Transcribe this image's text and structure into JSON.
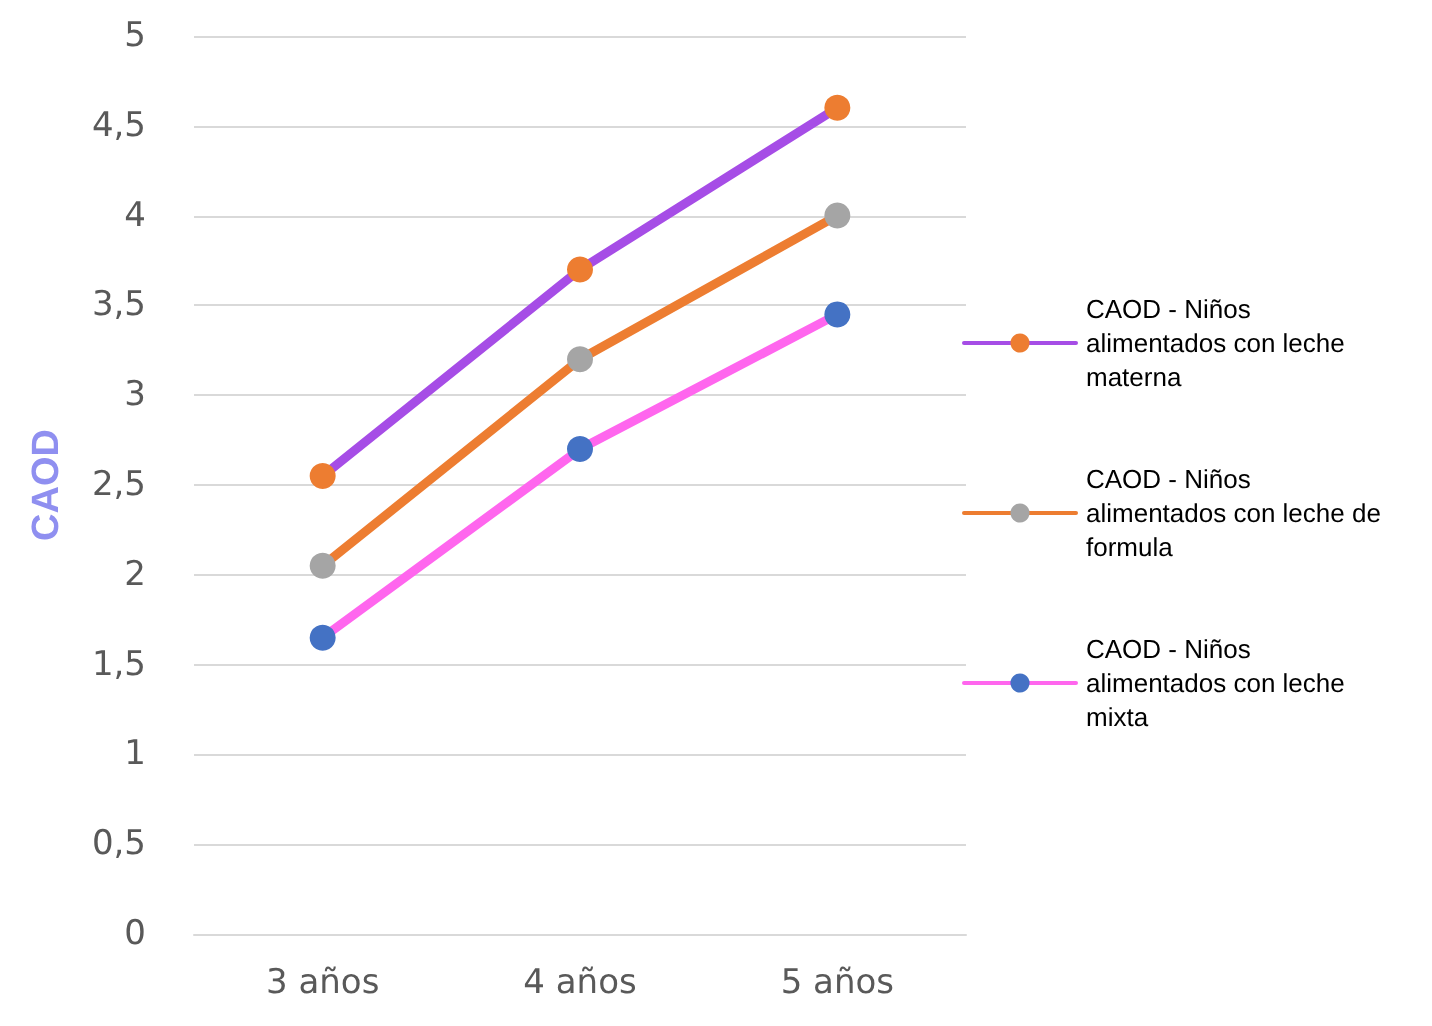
{
  "chart_data": {
    "type": "line",
    "ylabel": "CAOD",
    "categories": [
      "3 años",
      "4 años",
      "5 años"
    ],
    "series": [
      {
        "name": "CAOD - Niños alimentados con leche materna",
        "color": "#a64de6",
        "colors": [
          "#ed7d31",
          "#ed7d31",
          "#ed7d31"
        ],
        "values": [
          2.55,
          3.7,
          4.6
        ]
      },
      {
        "name": "CAOD - Niños alimentados con leche de formula",
        "color": "#ed7d31",
        "colors": [
          "#a5a5a5",
          "#a5a5a5",
          "#a5a5a5"
        ],
        "values": [
          2.05,
          3.2,
          4.0
        ]
      },
      {
        "name": "CAOD - Niños alimentados con leche mixta",
        "color": "#ff66ee",
        "colors": [
          "#4472c4",
          "#4472c4",
          "#4472c4"
        ],
        "values": [
          1.65,
          2.7,
          3.45
        ]
      }
    ],
    "ylim": [
      0,
      5
    ],
    "yticks": [
      {
        "value": 0,
        "label": "0"
      },
      {
        "value": 0.5,
        "label": "0,5"
      },
      {
        "value": 1,
        "label": "1"
      },
      {
        "value": 1.5,
        "label": "1,5"
      },
      {
        "value": 2,
        "label": "2"
      },
      {
        "value": 2.5,
        "label": "2,5"
      },
      {
        "value": 3,
        "label": "3"
      },
      {
        "value": 3.5,
        "label": "3,5"
      },
      {
        "value": 4,
        "label": "4"
      },
      {
        "value": 4.5,
        "label": "4,5"
      },
      {
        "value": 5,
        "label": "5"
      }
    ],
    "grid": "y",
    "legend": "right",
    "marker": "circle",
    "line_style": "solid"
  }
}
